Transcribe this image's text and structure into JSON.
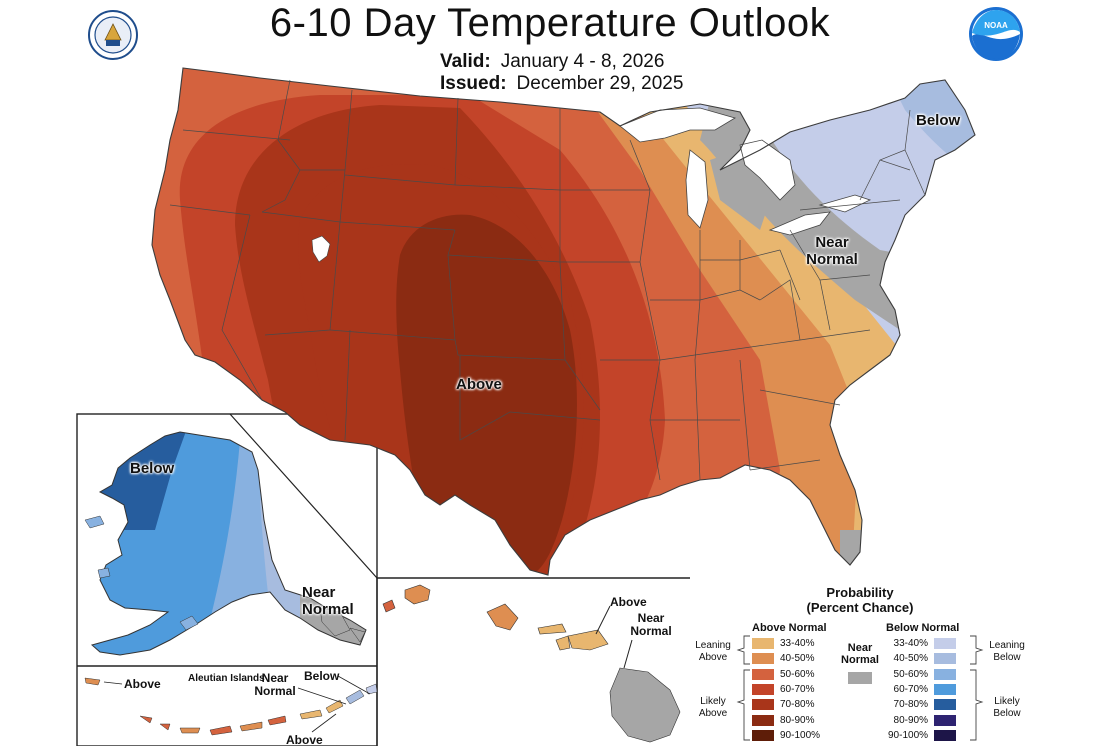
{
  "header": {
    "title": "6-10 Day Temperature Outlook",
    "valid_label": "Valid:",
    "valid_value": "January 4 - 8, 2026",
    "issued_label": "Issued:",
    "issued_value": "December 29, 2025"
  },
  "logos": {
    "left": "department-of-commerce-seal",
    "right": "noaa-logo"
  },
  "map_labels": {
    "conus_above": "Above",
    "conus_below": "Below",
    "conus_near_1": "Near",
    "conus_near_2": "Normal",
    "alaska_below": "Below",
    "alaska_near_1": "Near",
    "alaska_near_2": "Normal",
    "hawaii_above": "Above",
    "hawaii_near_1": "Near",
    "hawaii_near_2": "Normal",
    "aleutian_title": "Aleutian Islands",
    "aleutian_above_left": "Above",
    "aleutian_near_1": "Near",
    "aleutian_near_2": "Normal",
    "aleutian_below": "Below",
    "aleutian_above_bottom": "Above"
  },
  "legend": {
    "title_1": "Probability",
    "title_2": "(Percent Chance)",
    "above_header": "Above Normal",
    "below_header": "Below Normal",
    "near_1": "Near",
    "near_2": "Normal",
    "leaning_above_1": "Leaning",
    "leaning_above_2": "Above",
    "likely_above_1": "Likely",
    "likely_above_2": "Above",
    "leaning_below_1": "Leaning",
    "leaning_below_2": "Below",
    "likely_below_1": "Likely",
    "likely_below_2": "Below",
    "near_color": "#a6a6a6",
    "above": [
      {
        "range": "33-40%",
        "color": "#e8b66f"
      },
      {
        "range": "40-50%",
        "color": "#de8e51"
      },
      {
        "range": "50-60%",
        "color": "#d4623e"
      },
      {
        "range": "60-70%",
        "color": "#c34429"
      },
      {
        "range": "70-80%",
        "color": "#a9351a"
      },
      {
        "range": "80-90%",
        "color": "#8b2b12"
      },
      {
        "range": "90-100%",
        "color": "#5e1d08"
      }
    ],
    "below": [
      {
        "range": "33-40%",
        "color": "#c4cde9"
      },
      {
        "range": "40-50%",
        "color": "#a7bcdf"
      },
      {
        "range": "50-60%",
        "color": "#88b1e0"
      },
      {
        "range": "60-70%",
        "color": "#4f9bdc"
      },
      {
        "range": "70-80%",
        "color": "#265d9e"
      },
      {
        "range": "80-90%",
        "color": "#2e2371"
      },
      {
        "range": "90-100%",
        "color": "#1d1548"
      }
    ]
  }
}
